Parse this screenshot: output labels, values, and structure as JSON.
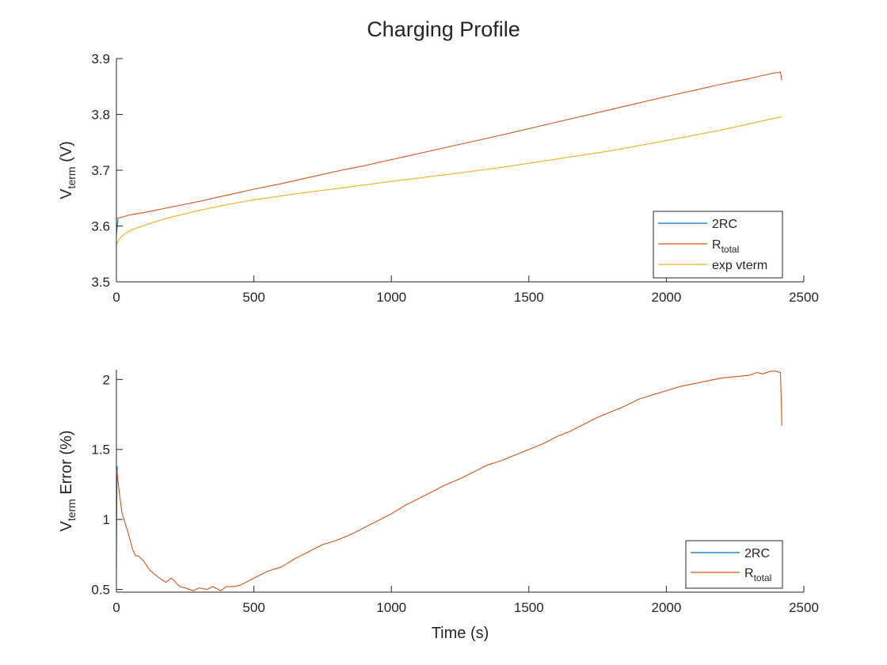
{
  "chart_data": [
    {
      "type": "line",
      "title": "Charging Profile",
      "ylabel": {
        "main": "V",
        "sub": "term",
        "rest": " (V)"
      },
      "xlabel": "",
      "xlim": [
        0,
        2500
      ],
      "ylim": [
        3.5,
        3.9
      ],
      "xticks": [
        0,
        500,
        1000,
        1500,
        2000,
        2500
      ],
      "yticks": [
        3.5,
        3.6,
        3.7,
        3.8,
        3.9
      ],
      "xtick_labels": [
        "0",
        "500",
        "1000",
        "1500",
        "2000",
        "2500"
      ],
      "ytick_labels": [
        "3.5",
        "3.6",
        "3.7",
        "3.8",
        "3.9"
      ],
      "grid": false,
      "legend_position": "bottom-right",
      "series": [
        {
          "name": "2RC",
          "legend_main": "2RC",
          "legend_sub": "",
          "color": "#0072BD",
          "x": [
            0,
            3,
            6
          ],
          "y": [
            3.585,
            3.6,
            3.612
          ]
        },
        {
          "name": "R_total",
          "legend_main": "R",
          "legend_sub": "total",
          "color": "#D95319",
          "x": [
            0,
            5,
            50,
            100,
            200,
            300,
            400,
            500,
            600,
            700,
            800,
            900,
            1000,
            1200,
            1400,
            1600,
            1800,
            2000,
            2200,
            2300,
            2380,
            2405,
            2415,
            2420
          ],
          "y": [
            3.612,
            3.614,
            3.62,
            3.624,
            3.634,
            3.644,
            3.655,
            3.666,
            3.676,
            3.687,
            3.698,
            3.708,
            3.719,
            3.741,
            3.763,
            3.786,
            3.809,
            3.832,
            3.854,
            3.864,
            3.873,
            3.875,
            3.876,
            3.861
          ]
        },
        {
          "name": "exp vterm",
          "legend_main": "exp vterm",
          "legend_sub": "",
          "color": "#EDB120",
          "x": [
            0,
            5,
            10,
            20,
            40,
            60,
            100,
            150,
            200,
            300,
            400,
            500,
            600,
            700,
            800,
            1000,
            1200,
            1400,
            1600,
            1800,
            2000,
            2200,
            2420
          ],
          "y": [
            3.566,
            3.572,
            3.576,
            3.582,
            3.589,
            3.594,
            3.601,
            3.609,
            3.616,
            3.628,
            3.638,
            3.647,
            3.654,
            3.661,
            3.667,
            3.68,
            3.692,
            3.705,
            3.72,
            3.735,
            3.753,
            3.772,
            3.796
          ]
        }
      ]
    },
    {
      "type": "line",
      "title": "",
      "ylabel": {
        "main": "V",
        "sub": "term",
        "rest": " Error (%)"
      },
      "xlabel": "Time (s)",
      "xlim": [
        0,
        2500
      ],
      "ylim": [
        0.48,
        2.07
      ],
      "xticks": [
        0,
        500,
        1000,
        1500,
        2000,
        2500
      ],
      "yticks": [
        0.5,
        1,
        1.5,
        2
      ],
      "xtick_labels": [
        "0",
        "500",
        "1000",
        "1500",
        "2000",
        "2500"
      ],
      "ytick_labels": [
        "0.5",
        "1",
        "1.5",
        "2"
      ],
      "grid": false,
      "legend_position": "bottom-right",
      "series": [
        {
          "name": "2RC",
          "legend_main": "2RC",
          "legend_sub": "",
          "color": "#0072BD",
          "x": [
            0,
            1,
            2,
            3
          ],
          "y": [
            0.63,
            1.0,
            1.3,
            1.38
          ]
        },
        {
          "name": "R_total",
          "legend_main": "R",
          "legend_sub": "total",
          "color": "#D95319",
          "x": [
            0,
            10,
            20,
            40,
            50,
            60,
            70,
            80,
            100,
            120,
            150,
            180,
            200,
            230,
            250,
            280,
            300,
            330,
            350,
            380,
            400,
            430,
            450,
            480,
            500,
            550,
            600,
            650,
            700,
            750,
            800,
            850,
            900,
            950,
            1000,
            1050,
            1100,
            1150,
            1200,
            1250,
            1300,
            1350,
            1400,
            1450,
            1500,
            1550,
            1600,
            1650,
            1700,
            1750,
            1800,
            1850,
            1900,
            1950,
            2000,
            2050,
            2100,
            2150,
            2200,
            2250,
            2300,
            2330,
            2350,
            2380,
            2400,
            2410,
            2415,
            2418,
            2420
          ],
          "y": [
            1.38,
            1.2,
            1.05,
            0.92,
            0.85,
            0.78,
            0.74,
            0.74,
            0.7,
            0.64,
            0.59,
            0.55,
            0.58,
            0.52,
            0.51,
            0.49,
            0.51,
            0.5,
            0.52,
            0.49,
            0.52,
            0.52,
            0.53,
            0.56,
            0.58,
            0.63,
            0.66,
            0.72,
            0.77,
            0.82,
            0.85,
            0.89,
            0.94,
            0.99,
            1.04,
            1.1,
            1.15,
            1.2,
            1.25,
            1.29,
            1.34,
            1.39,
            1.42,
            1.46,
            1.5,
            1.54,
            1.59,
            1.63,
            1.68,
            1.73,
            1.77,
            1.81,
            1.86,
            1.89,
            1.92,
            1.95,
            1.97,
            1.99,
            2.01,
            2.02,
            2.03,
            2.05,
            2.04,
            2.06,
            2.06,
            2.05,
            2.05,
            1.85,
            1.67
          ]
        }
      ]
    }
  ]
}
